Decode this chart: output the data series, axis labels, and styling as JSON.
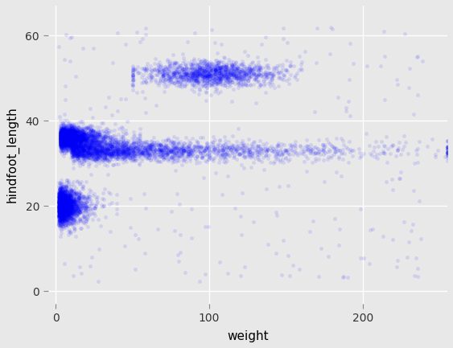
{
  "title": "",
  "xlabel": "weight",
  "ylabel": "hindfoot_length",
  "xlim": [
    -5,
    255
  ],
  "ylim": [
    -3,
    67
  ],
  "xticks": [
    0,
    100,
    200
  ],
  "yticks": [
    0,
    20,
    40,
    60
  ],
  "point_color": "#0000ff",
  "point_alpha": 0.1,
  "point_size": 12,
  "background_color": "#e8e8e8",
  "grid_color": "#ffffff",
  "figsize": [
    5.63,
    4.33
  ],
  "dpi": 100
}
